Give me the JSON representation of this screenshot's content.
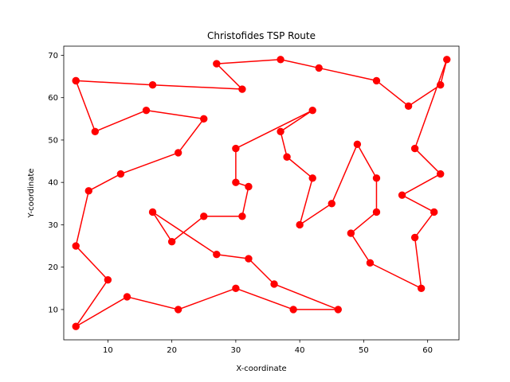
{
  "chart_data": {
    "type": "line",
    "title": "Christofides TSP Route",
    "xlabel": "X-coordinate",
    "ylabel": "Y-coordinate",
    "xlim": [
      3.1,
      64.9
    ],
    "ylim": [
      2.85,
      72.15
    ],
    "x_ticks": [
      10,
      20,
      30,
      40,
      50,
      60
    ],
    "y_ticks": [
      10,
      20,
      30,
      40,
      50,
      60,
      70
    ],
    "grid": false,
    "legend": "none",
    "series": [
      {
        "color": "#ff0000",
        "marker": "circle",
        "points": [
          [
            5,
            64
          ],
          [
            17,
            63
          ],
          [
            31,
            62
          ],
          [
            27,
            68
          ],
          [
            37,
            69
          ],
          [
            43,
            67
          ],
          [
            52,
            64
          ],
          [
            57,
            58
          ],
          [
            62,
            63
          ],
          [
            63,
            69
          ],
          [
            58,
            48
          ],
          [
            62,
            42
          ],
          [
            56,
            37
          ],
          [
            61,
            33
          ],
          [
            58,
            27
          ],
          [
            59,
            15
          ],
          [
            51,
            21
          ],
          [
            48,
            28
          ],
          [
            52,
            33
          ],
          [
            52,
            41
          ],
          [
            49,
            49
          ],
          [
            45,
            35
          ],
          [
            40,
            30
          ],
          [
            42,
            41
          ],
          [
            38,
            46
          ],
          [
            37,
            52
          ],
          [
            42,
            57
          ],
          [
            30,
            48
          ],
          [
            30,
            40
          ],
          [
            32,
            39
          ],
          [
            31,
            32
          ],
          [
            25,
            32
          ],
          [
            20,
            26
          ],
          [
            17,
            33
          ],
          [
            27,
            23
          ],
          [
            32,
            22
          ],
          [
            36,
            16
          ],
          [
            46,
            10
          ],
          [
            39,
            10
          ],
          [
            30,
            15
          ],
          [
            21,
            10
          ],
          [
            13,
            13
          ],
          [
            5,
            6
          ],
          [
            10,
            17
          ],
          [
            5,
            25
          ],
          [
            7,
            38
          ],
          [
            12,
            42
          ],
          [
            21,
            47
          ],
          [
            25,
            55
          ],
          [
            16,
            57
          ],
          [
            8,
            52
          ],
          [
            5,
            64
          ]
        ]
      }
    ]
  }
}
